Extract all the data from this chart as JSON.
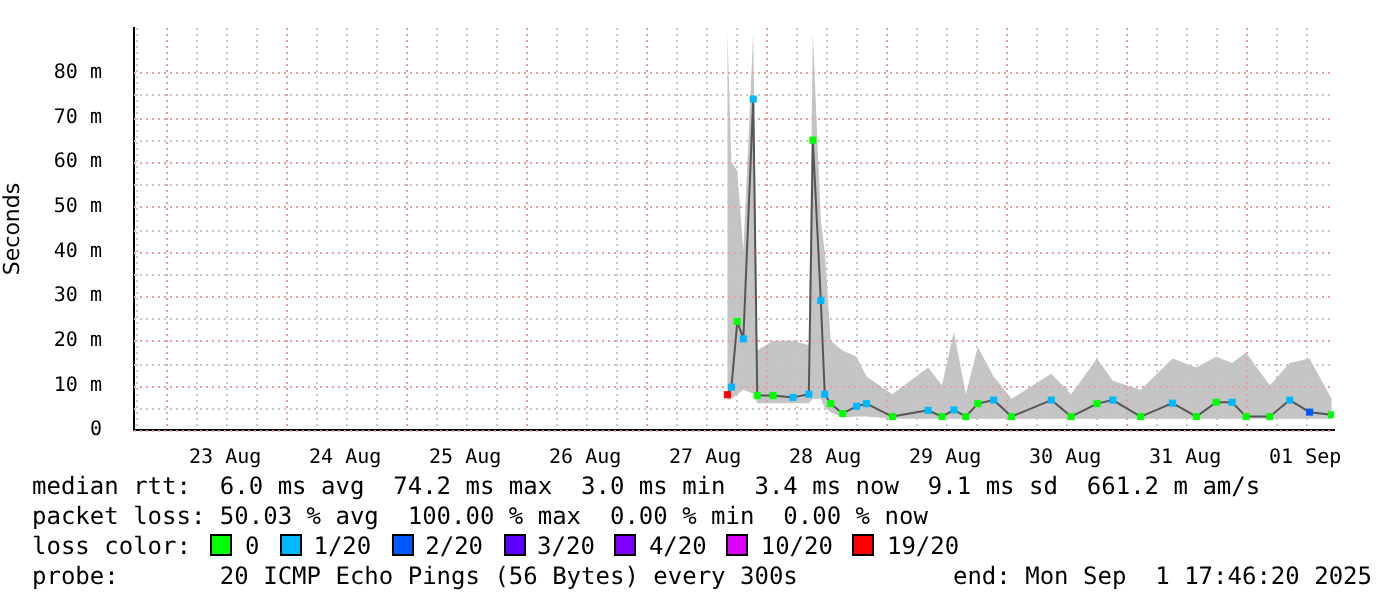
{
  "chart_data": {
    "type": "line",
    "ylabel": "Seconds",
    "x": [
      "2025-08-27T16:27",
      "2025-08-27T17:15",
      "2025-08-27T18:26",
      "2025-08-27T19:38",
      "2025-08-27T21:37",
      "2025-08-27T22:25",
      "2025-08-28T01:35",
      "2025-08-28T05:34",
      "2025-08-28T08:44",
      "2025-08-28T09:32",
      "2025-08-28T11:08",
      "2025-08-28T11:55",
      "2025-08-28T13:07",
      "2025-08-28T15:30",
      "2025-08-28T18:17",
      "2025-08-28T20:16",
      "2025-08-29T01:26",
      "2025-08-29T08:35",
      "2025-08-29T11:22",
      "2025-08-29T13:45",
      "2025-08-29T16:08",
      "2025-08-29T18:31",
      "2025-08-29T21:42",
      "2025-08-30T01:17",
      "2025-08-30T09:14",
      "2025-08-30T13:12",
      "2025-08-30T18:22",
      "2025-08-30T21:32",
      "2025-08-31T03:06",
      "2025-08-31T09:28",
      "2025-08-31T14:14",
      "2025-08-31T18:12",
      "2025-08-31T21:23",
      "2025-09-01T00:10",
      "2025-09-01T04:56",
      "2025-09-01T08:55",
      "2025-09-01T12:53",
      "2025-09-01T17:16"
    ],
    "series": [
      {
        "color": "#555555",
        "values": [
          7.9,
          9.6,
          24.3,
          20.4,
          74.1,
          7.7,
          7.7,
          7.3,
          8.0,
          64.9,
          29.0,
          8.0,
          5.9,
          3.7,
          5.3,
          5.9,
          3.0,
          4.4,
          3.0,
          4.5,
          3.0,
          5.9,
          6.7,
          3.0,
          6.7,
          3.0,
          5.9,
          6.7,
          3.0,
          6.0,
          3.0,
          6.2,
          6.2,
          3.0,
          3.0,
          6.7,
          4.0,
          3.4
        ],
        "lower": [
          6.6,
          7,
          8,
          9,
          8.1,
          6,
          6,
          6,
          6,
          7,
          7,
          5,
          4,
          2.8,
          3,
          3,
          2.5,
          2.5,
          2.5,
          2.5,
          2.5,
          2.5,
          2.5,
          2.5,
          2.5,
          2.5,
          2.5,
          2.5,
          2.5,
          2.5,
          2.5,
          2.5,
          2.5,
          2.5,
          2.5,
          2.5,
          2.5,
          2.5
        ],
        "upper": [
          88.9,
          60,
          58,
          40,
          88.9,
          17.8,
          20,
          20,
          19,
          88.9,
          47,
          40,
          20,
          17.8,
          16.4,
          12,
          8,
          14,
          10,
          22,
          8,
          18.6,
          12,
          7,
          12.6,
          8,
          16,
          11,
          9,
          16,
          14,
          16.4,
          15,
          17.3,
          10,
          15,
          16,
          7
        ]
      },
      {
        "type": "scatter",
        "name": "0",
        "marker": "square",
        "color": "#00ff00",
        "values": [
          null,
          null,
          24.3,
          null,
          null,
          7.7,
          7.7,
          null,
          null,
          64.9,
          null,
          null,
          5.9,
          3.7,
          null,
          null,
          3.0,
          null,
          3.0,
          null,
          3.0,
          5.9,
          null,
          3.0,
          null,
          3.0,
          5.9,
          null,
          3.0,
          null,
          3.0,
          6.2,
          null,
          3.0,
          3.0,
          null,
          null,
          3.4
        ]
      },
      {
        "type": "scatter",
        "name": "1/20",
        "marker": "square",
        "color": "#00b8ff",
        "values": [
          null,
          9.6,
          null,
          20.4,
          74.1,
          null,
          null,
          7.3,
          8.0,
          null,
          29.0,
          8.0,
          null,
          null,
          5.3,
          5.9,
          null,
          4.4,
          null,
          4.5,
          null,
          null,
          6.7,
          null,
          6.7,
          null,
          null,
          6.7,
          null,
          6.0,
          null,
          null,
          6.2,
          null,
          null,
          6.7,
          null,
          null
        ]
      },
      {
        "type": "scatter",
        "name": "2/20",
        "marker": "square",
        "color": "#0059ff",
        "values": [
          null,
          null,
          null,
          null,
          null,
          null,
          null,
          null,
          null,
          null,
          null,
          null,
          null,
          null,
          null,
          null,
          null,
          null,
          null,
          null,
          null,
          null,
          null,
          null,
          null,
          null,
          null,
          null,
          null,
          null,
          null,
          null,
          null,
          null,
          null,
          null,
          4.0,
          null
        ]
      },
      {
        "type": "scatter",
        "name": "3/20",
        "marker": "square",
        "color": "#5e00ff",
        "values": [
          null,
          null,
          null,
          null,
          null,
          null,
          null,
          null,
          null,
          null,
          null,
          null,
          null,
          null,
          null,
          null,
          null,
          null,
          null,
          null,
          null,
          null,
          null,
          null,
          null,
          null,
          null,
          null,
          null,
          null,
          null,
          null,
          null,
          null,
          null,
          null,
          null,
          null
        ]
      },
      {
        "type": "scatter",
        "name": "4/20",
        "marker": "square",
        "color": "#7e00ff",
        "values": [
          null,
          null,
          null,
          null,
          null,
          null,
          null,
          null,
          null,
          null,
          null,
          null,
          null,
          null,
          null,
          null,
          null,
          null,
          null,
          null,
          null,
          null,
          null,
          null,
          null,
          null,
          null,
          null,
          null,
          null,
          null,
          null,
          null,
          null,
          null,
          null,
          null,
          null
        ]
      },
      {
        "type": "scatter",
        "name": "10/20",
        "marker": "square",
        "color": "#dd00ff",
        "values": [
          null,
          null,
          null,
          null,
          null,
          null,
          null,
          null,
          null,
          null,
          null,
          null,
          null,
          null,
          null,
          null,
          null,
          null,
          null,
          null,
          null,
          null,
          null,
          null,
          null,
          null,
          null,
          null,
          null,
          null,
          null,
          null,
          null,
          null,
          null,
          null,
          null,
          null
        ]
      },
      {
        "type": "scatter",
        "name": "19/20",
        "marker": "square",
        "color": "#ff0000",
        "values": [
          7.9,
          null,
          null,
          null,
          null,
          null,
          null,
          null,
          null,
          null,
          null,
          null,
          null,
          null,
          null,
          null,
          null,
          null,
          null,
          null,
          null,
          null,
          null,
          null,
          null,
          null,
          null,
          null,
          null,
          null,
          null,
          null,
          null,
          null,
          null,
          null,
          null,
          null
        ]
      }
    ],
    "xlim": [
      "2025-08-22T17:46",
      "2025-09-01T17:46"
    ],
    "xticks": [
      {
        "value": "2025-08-23T12:00",
        "label": "23 Aug"
      },
      {
        "value": "2025-08-24T12:00",
        "label": "24 Aug"
      },
      {
        "value": "2025-08-25T12:00",
        "label": "25 Aug"
      },
      {
        "value": "2025-08-26T12:00",
        "label": "26 Aug"
      },
      {
        "value": "2025-08-27T12:00",
        "label": "27 Aug"
      },
      {
        "value": "2025-08-28T12:00",
        "label": "28 Aug"
      },
      {
        "value": "2025-08-29T12:00",
        "label": "29 Aug"
      },
      {
        "value": "2025-08-30T12:00",
        "label": "30 Aug"
      },
      {
        "value": "2025-08-31T12:00",
        "label": "31 Aug"
      },
      {
        "value": "2025-09-01T12:00",
        "label": "01 Sep"
      }
    ],
    "ylim": [
      0,
      90
    ],
    "yticks": [
      0,
      {
        "value": 10,
        "label": "10 m"
      },
      {
        "value": 20,
        "label": "20 m"
      },
      {
        "value": 30,
        "label": "30 m"
      },
      {
        "value": 40,
        "label": "40 m"
      },
      {
        "value": 50,
        "label": "50 m"
      },
      {
        "value": 60,
        "label": "60 m"
      },
      {
        "value": 70,
        "label": "70 m"
      },
      {
        "value": 80,
        "label": "80 m"
      }
    ],
    "grid": true,
    "legend": "bottom",
    "annotations": [
      "median rtt:  6.0 ms avg  74.2 ms max  3.0 ms min  3.4 ms now  9.1 ms sd  661.2 m am/s",
      "packet loss: 50.03 % avg  100.00 % max  0.00 % min  0.00 % now",
      "loss color:",
      "probe:       20 ICMP Echo Pings (56 Bytes) every 300s",
      "end: Mon Sep  1 17:46:20 2025"
    ]
  }
}
